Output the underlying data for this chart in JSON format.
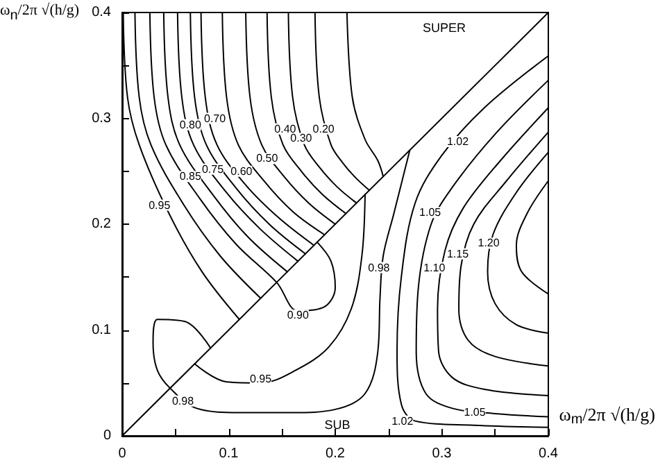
{
  "chart_data": {
    "type": "line",
    "xlabel": "ω$_{m}$/2π √(h/g)",
    "ylabel": "ω$_{n}$/2π √(h/g)",
    "marker": "none",
    "xlim": [
      0,
      0.4
    ],
    "ylim": [
      0,
      0.4
    ],
    "xticks": [
      0,
      {
        "value": 0.05,
        "label": null
      },
      0.1,
      {
        "value": 0.15,
        "label": null
      },
      0.2,
      {
        "value": 0.25,
        "label": null
      },
      0.3,
      {
        "value": 0.35,
        "label": null
      },
      0.4
    ],
    "yticks": [
      0,
      {
        "value": 0.05,
        "label": null
      },
      0.1,
      {
        "value": 0.15,
        "label": null
      },
      0.2,
      {
        "value": 0.25,
        "label": null
      },
      0.3,
      {
        "value": 0.35,
        "label": null
      },
      0.4
    ],
    "series": [
      {
        "color": "#000000",
        "x": [
          0,
          0.4
        ],
        "values": [
          0,
          0.4
        ]
      },
      {
        "color": "#000000",
        "x": [
          0.001,
          0.005,
          0.016,
          0.044,
          0.075,
          0.11
        ],
        "values": [
          0.4,
          0.32,
          0.275,
          0.21,
          0.155,
          0.11
        ]
      },
      {
        "color": "#000000",
        "x": [
          0.012,
          0.016,
          0.027,
          0.058,
          0.092,
          0.13
        ],
        "values": [
          0.4,
          0.32,
          0.275,
          0.218,
          0.17,
          0.13
        ]
      },
      {
        "color": "#000000",
        "x": [
          0.026,
          0.03,
          0.041,
          0.073,
          0.107,
          0.145,
          0.165,
          0.19,
          0.2,
          0.196,
          0.183
        ],
        "values": [
          0.4,
          0.32,
          0.275,
          0.224,
          0.181,
          0.145,
          0.118,
          0.122,
          0.14,
          0.165,
          0.183
        ]
      },
      {
        "color": "#000000",
        "x": [
          0.039,
          0.043,
          0.054,
          0.085,
          0.118,
          0.155
        ],
        "values": [
          0.4,
          0.32,
          0.275,
          0.228,
          0.188,
          0.155
        ]
      },
      {
        "color": "#000000",
        "x": [
          0.052,
          0.056,
          0.067,
          0.097,
          0.129,
          0.165
        ],
        "values": [
          0.4,
          0.32,
          0.275,
          0.231,
          0.196,
          0.165
        ]
      },
      {
        "color": "#000000",
        "x": [
          0.064,
          0.068,
          0.079,
          0.107,
          0.138,
          0.172
        ],
        "values": [
          0.4,
          0.32,
          0.275,
          0.234,
          0.2,
          0.172
        ]
      },
      {
        "color": "#000000",
        "x": [
          0.074,
          0.078,
          0.089,
          0.116,
          0.147,
          0.18
        ],
        "values": [
          0.4,
          0.32,
          0.275,
          0.237,
          0.206,
          0.18
        ]
      },
      {
        "color": "#000000",
        "x": [
          0.094,
          0.098,
          0.109,
          0.133,
          0.16,
          0.19
        ],
        "values": [
          0.4,
          0.32,
          0.275,
          0.241,
          0.212,
          0.19
        ]
      },
      {
        "color": "#000000",
        "x": [
          0.116,
          0.12,
          0.131,
          0.152,
          0.175,
          0.2
        ],
        "values": [
          0.4,
          0.32,
          0.275,
          0.245,
          0.22,
          0.2
        ]
      },
      {
        "color": "#000000",
        "x": [
          0.136,
          0.14,
          0.151,
          0.169,
          0.188,
          0.21
        ],
        "values": [
          0.4,
          0.32,
          0.275,
          0.249,
          0.228,
          0.21
        ]
      },
      {
        "color": "#000000",
        "x": [
          0.156,
          0.16,
          0.171,
          0.185,
          0.202,
          0.22
        ],
        "values": [
          0.4,
          0.32,
          0.275,
          0.254,
          0.235,
          0.22
        ]
      },
      {
        "color": "#000000",
        "x": [
          0.181,
          0.185,
          0.196,
          0.207,
          0.219,
          0.232
        ],
        "values": [
          0.4,
          0.32,
          0.275,
          0.258,
          0.244,
          0.232
        ]
      },
      {
        "color": "#000000",
        "x": [
          0.211,
          0.216,
          0.228,
          0.24,
          0.245
        ],
        "values": [
          0.4,
          0.32,
          0.28,
          0.26,
          0.245
        ]
      },
      {
        "color": "#000000",
        "x": [
          0.068,
          0.098,
          0.13,
          0.163,
          0.194,
          0.215,
          0.225,
          0.228
        ],
        "values": [
          0.068,
          0.051,
          0.05,
          0.062,
          0.084,
          0.12,
          0.17,
          0.228
        ]
      },
      {
        "color": "#000000",
        "x": [
          0.083,
          0.059,
          0.033,
          0.029,
          0.033,
          0.045,
          0.07,
          0.11,
          0.16,
          0.2,
          0.228,
          0.24,
          0.242,
          0.245,
          0.255,
          0.27
        ],
        "values": [
          0.083,
          0.108,
          0.11,
          0.088,
          0.062,
          0.045,
          0.026,
          0.022,
          0.022,
          0.025,
          0.04,
          0.08,
          0.13,
          0.17,
          0.21,
          0.27
        ]
      },
      {
        "color": "#000000",
        "x": [
          0.4,
          0.34,
          0.3,
          0.275,
          0.262,
          0.258,
          0.262,
          0.275,
          0.33,
          0.4
        ],
        "values": [
          0.359,
          0.31,
          0.265,
          0.22,
          0.15,
          0.08,
          0.03,
          0.014,
          0.01,
          0.008
        ]
      },
      {
        "color": "#000000",
        "x": [
          0.4,
          0.35,
          0.31,
          0.29,
          0.278,
          0.276,
          0.285,
          0.31,
          0.35,
          0.4
        ],
        "values": [
          0.336,
          0.285,
          0.235,
          0.2,
          0.14,
          0.08,
          0.04,
          0.026,
          0.021,
          0.018
        ]
      },
      {
        "color": "#000000",
        "x": [
          0.4,
          0.355,
          0.32,
          0.303,
          0.296,
          0.297,
          0.31,
          0.34,
          0.4
        ],
        "values": [
          0.31,
          0.26,
          0.215,
          0.175,
          0.12,
          0.08,
          0.055,
          0.044,
          0.038
        ]
      },
      {
        "color": "#000000",
        "x": [
          0.4,
          0.36,
          0.33,
          0.318,
          0.316,
          0.325,
          0.35,
          0.4
        ],
        "values": [
          0.287,
          0.24,
          0.2,
          0.16,
          0.12,
          0.09,
          0.075,
          0.066
        ]
      },
      {
        "color": "#000000",
        "x": [
          0.4,
          0.37,
          0.348,
          0.343,
          0.35,
          0.37,
          0.4
        ],
        "values": [
          0.268,
          0.23,
          0.19,
          0.155,
          0.125,
          0.105,
          0.097
        ]
      },
      {
        "color": "#000000",
        "x": [
          0.4,
          0.38,
          0.37,
          0.375,
          0.4
        ],
        "values": [
          0.241,
          0.21,
          0.18,
          0.155,
          0.134
        ]
      }
    ],
    "annotations": [
      "SUPER",
      "SUB",
      {
        "text": "0.95",
        "x": 0.035,
        "y": 0.218
      },
      {
        "text": "0.85",
        "x": 0.064,
        "y": 0.245
      },
      {
        "text": "0.80",
        "x": 0.064,
        "y": 0.294
      },
      {
        "text": "0.75",
        "x": 0.085,
        "y": 0.252
      },
      {
        "text": "0.70",
        "x": 0.087,
        "y": 0.3
      },
      {
        "text": "0.60",
        "x": 0.112,
        "y": 0.25
      },
      {
        "text": "0.50",
        "x": 0.136,
        "y": 0.262
      },
      {
        "text": "0.40",
        "x": 0.153,
        "y": 0.29
      },
      {
        "text": "0.30",
        "x": 0.168,
        "y": 0.281
      },
      {
        "text": "0.20",
        "x": 0.189,
        "y": 0.29
      },
      {
        "text": "0.90",
        "x": 0.165,
        "y": 0.114
      },
      {
        "text": "0.95",
        "x": 0.13,
        "y": 0.054
      },
      {
        "text": "0.98",
        "x": 0.057,
        "y": 0.033
      },
      {
        "text": "0.98",
        "x": 0.241,
        "y": 0.159
      },
      {
        "text": "1.02",
        "x": 0.315,
        "y": 0.278
      },
      {
        "text": "1.05",
        "x": 0.289,
        "y": 0.211
      },
      {
        "text": "1.10",
        "x": 0.293,
        "y": 0.159
      },
      {
        "text": "1.15",
        "x": 0.315,
        "y": 0.172
      },
      {
        "text": "1.20",
        "x": 0.344,
        "y": 0.182
      },
      {
        "text": "1.05",
        "x": 0.331,
        "y": 0.022
      },
      {
        "text": "1.02",
        "x": 0.263,
        "y": 0.014
      }
    ]
  }
}
